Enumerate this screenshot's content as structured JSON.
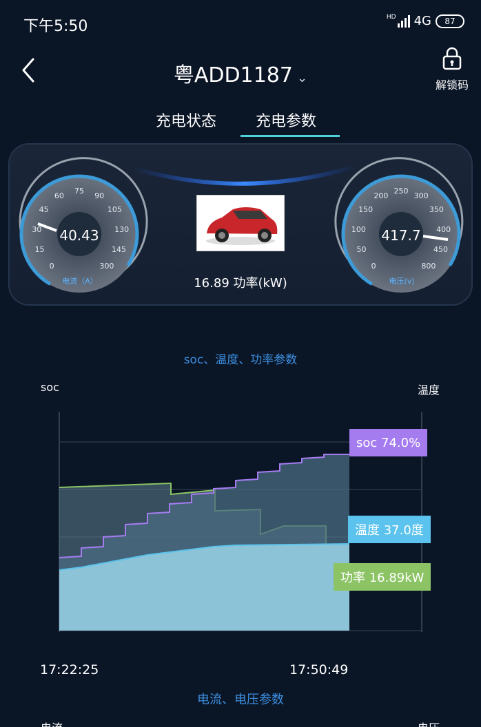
{
  "status_bar": {
    "time": "下午5:50",
    "network": "4G",
    "hd": "HD",
    "battery": "87"
  },
  "header": {
    "back_icon": "chevron-left-icon",
    "plate": "粤ADD1187",
    "dropdown_icon": "chevron-down-icon",
    "unlock_icon": "lock-icon",
    "unlock_label": "解锁码"
  },
  "tabs": [
    {
      "label": "充电状态",
      "active": false
    },
    {
      "label": "充电参数",
      "active": true
    }
  ],
  "dashboard": {
    "current_gauge": {
      "value": "40.43",
      "label": "电流（A）",
      "ticks": [
        "0",
        "15",
        "30",
        "45",
        "60",
        "75",
        "90",
        "105",
        "130",
        "145",
        "300"
      ]
    },
    "voltage_gauge": {
      "value": "417.7",
      "label": "电压(v)",
      "ticks": [
        "0",
        "50",
        "100",
        "150",
        "200",
        "250",
        "300",
        "350",
        "400",
        "450",
        "800"
      ]
    },
    "power_readout": "16.89 功率(kW)"
  },
  "chart": {
    "title": "soc、温度、功率参数",
    "left_axis_label": "soc",
    "right_axis_label": "温度",
    "x_start": "17:22:25",
    "x_end": "17:50:49",
    "tags": {
      "soc": "soc 74.0%",
      "temp": "温度 37.0度",
      "power": "功率 16.89kW"
    },
    "colors": {
      "soc": "#a57cf0",
      "temp": "#5bc3ed",
      "power": "#8cc364"
    }
  },
  "chart2": {
    "title": "电流、电压参数",
    "left_axis_label": "电流",
    "right_axis_label": "电压"
  }
}
